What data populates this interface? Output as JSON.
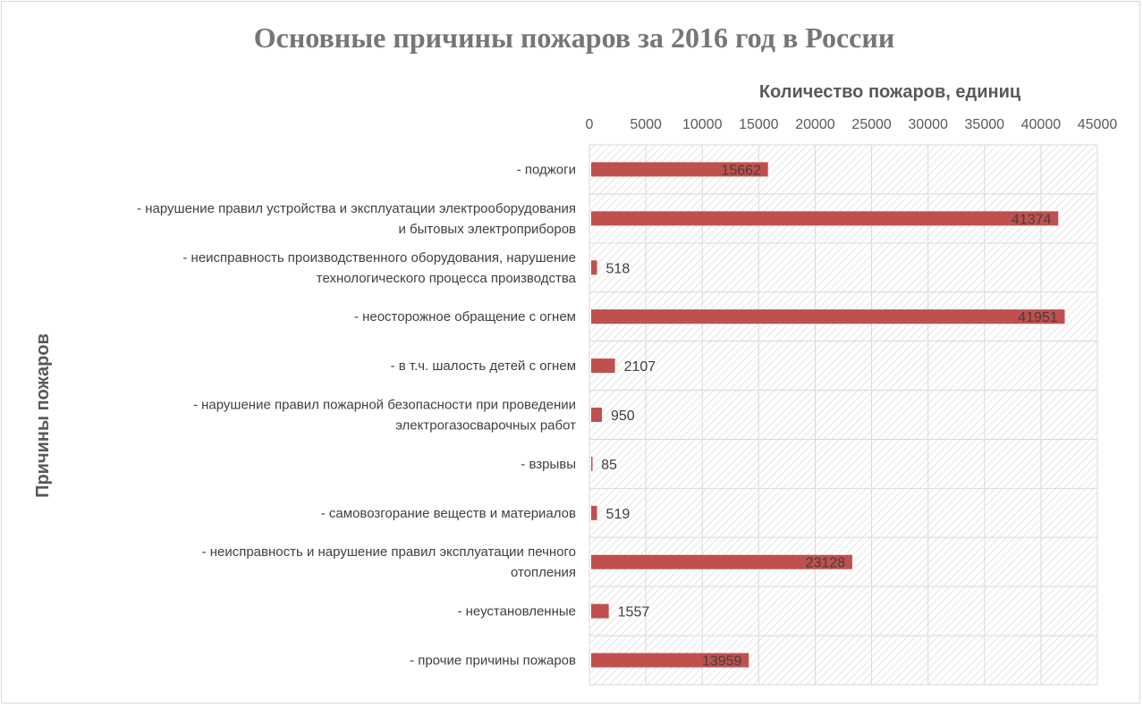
{
  "chart_data": {
    "type": "bar",
    "orientation": "horizontal",
    "title": "Основные причины пожаров за 2016 год в России",
    "xlabel": "Количество пожаров, единиц",
    "ylabel": "Причины  пожаров",
    "xlim": [
      0,
      45000
    ],
    "xticks": [
      "0",
      "5000",
      "10000",
      "15000",
      "20000",
      "25000",
      "30000",
      "35000",
      "40000",
      "45000"
    ],
    "x_axis_position": "top",
    "grid": true,
    "legend": "none",
    "bar_color": "#c0504d",
    "categories": [
      [
        "- поджоги"
      ],
      [
        "- нарушение правил устройства и эксплуатации электрооборудования",
        "и бытовых электроприборов"
      ],
      [
        "- неисправность производственного оборудования, нарушение",
        "технологического процесса производства"
      ],
      [
        "- неосторожное обращение с огнем"
      ],
      [
        "- в т.ч. шалость детей с огнем"
      ],
      [
        "- нарушение правил пожарной безопасности при проведении",
        "электрогазосварочных работ"
      ],
      [
        "- взрывы"
      ],
      [
        "- самовозгорание веществ и материалов"
      ],
      [
        "- неисправность и нарушение правил эксплуатации печного",
        "отопления"
      ],
      [
        "- неустановленные"
      ],
      [
        "- прочие причины пожаров"
      ]
    ],
    "values": [
      15662,
      41374,
      518,
      41951,
      2107,
      950,
      85,
      519,
      23128,
      1557,
      13959
    ],
    "data_labels": [
      "15662",
      "41374",
      "518",
      "41951",
      "2107",
      "950",
      "85",
      "519",
      "23128",
      "1557",
      "13959"
    ]
  }
}
